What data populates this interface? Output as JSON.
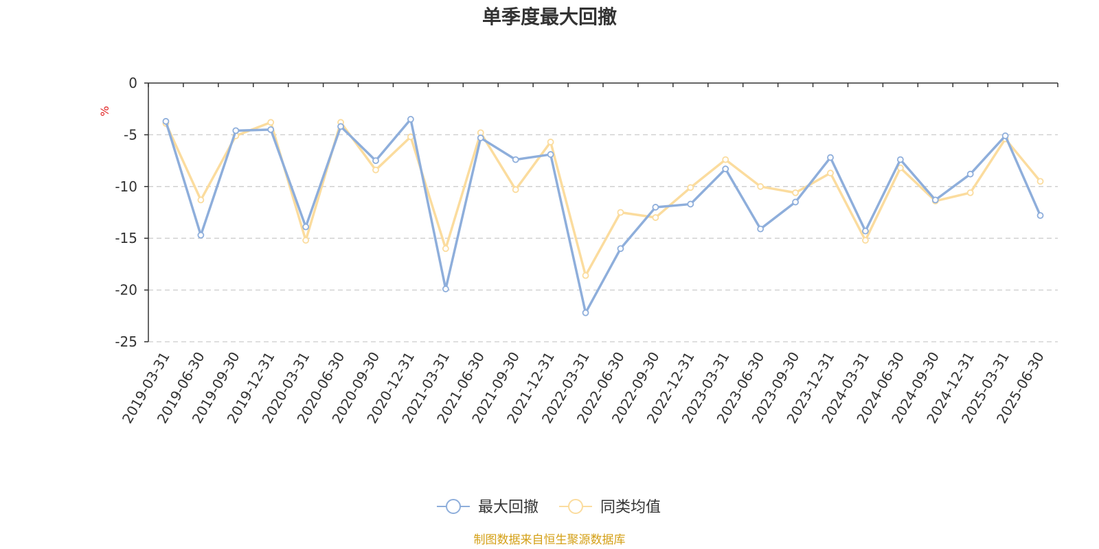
{
  "chart_data": {
    "type": "line",
    "title": "单季度最大回撤",
    "ylabel": "%",
    "ylim": [
      -25,
      0
    ],
    "yticks": [
      0,
      -5,
      -10,
      -15,
      -20,
      -25
    ],
    "grid": true,
    "legend_position": "bottom-center",
    "categories": [
      "2019-03-31",
      "2019-06-30",
      "2019-09-30",
      "2019-12-31",
      "2020-03-31",
      "2020-06-30",
      "2020-09-30",
      "2020-12-31",
      "2021-03-31",
      "2021-06-30",
      "2021-09-30",
      "2021-12-31",
      "2022-03-31",
      "2022-06-30",
      "2022-09-30",
      "2022-12-31",
      "2023-03-31",
      "2023-06-30",
      "2023-09-30",
      "2023-12-31",
      "2024-03-31",
      "2024-06-30",
      "2024-09-30",
      "2024-12-31",
      "2025-03-31",
      "2025-06-30"
    ],
    "series": [
      {
        "name": "最大回撤",
        "color": "#8eaedb",
        "values": [
          -3.7,
          -14.7,
          -4.6,
          -4.5,
          -13.9,
          -4.2,
          -7.5,
          -3.5,
          -19.9,
          -5.3,
          -7.4,
          -6.9,
          -22.2,
          -16.0,
          -12.0,
          -11.7,
          -8.3,
          -14.1,
          -11.5,
          -7.2,
          -14.3,
          -7.4,
          -11.3,
          -8.8,
          -5.1,
          -12.8
        ]
      },
      {
        "name": "同类均值",
        "color": "#fbdc9e",
        "values": [
          -3.9,
          -11.3,
          -5.1,
          -3.8,
          -15.2,
          -3.8,
          -8.4,
          -5.2,
          -16.0,
          -4.8,
          -10.3,
          -5.7,
          -18.6,
          -12.5,
          -13.0,
          -10.1,
          -7.4,
          -10.0,
          -10.6,
          -8.7,
          -15.2,
          -8.2,
          -11.4,
          -10.6,
          -5.4,
          -9.5
        ]
      }
    ],
    "source_note": "制图数据来自恒生聚源数据库",
    "source_color": "#d4a017",
    "unit_color": "#e02020"
  }
}
